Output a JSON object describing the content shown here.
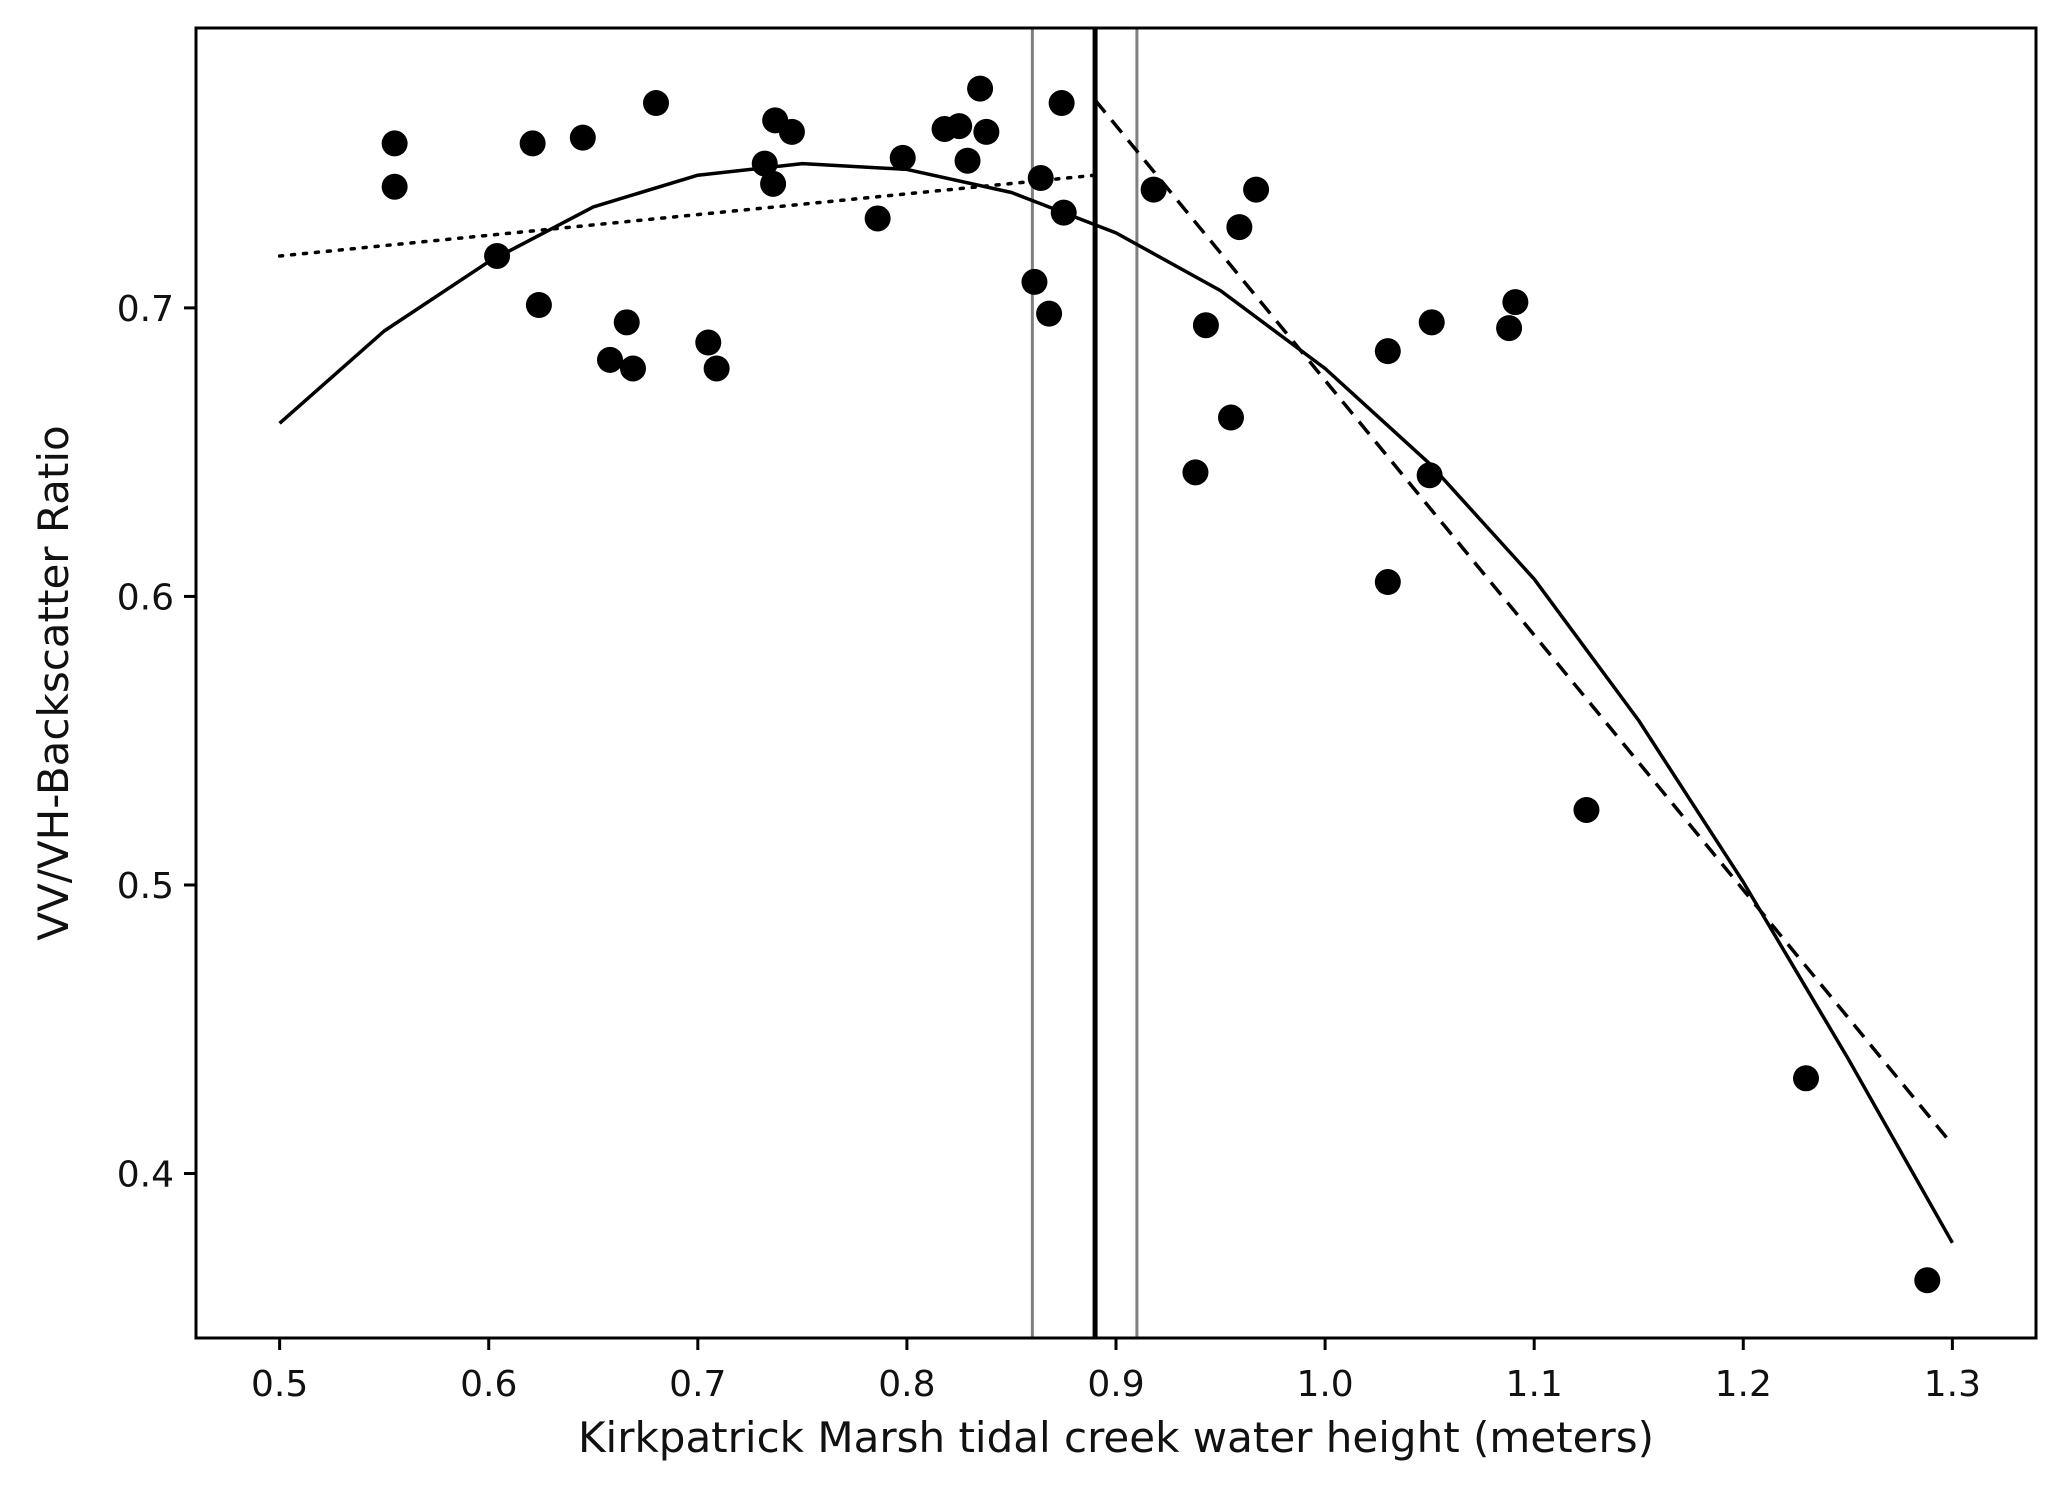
{
  "chart_data": {
    "type": "scatter",
    "title": "",
    "xlabel": "Kirkpatrick Marsh tidal creek water height (meters)",
    "ylabel": "VV/VH-Backscatter Ratio",
    "xlim": [
      0.46,
      1.34
    ],
    "ylim": [
      0.343,
      0.797
    ],
    "grid": false,
    "x_ticks": [
      0.5,
      0.6,
      0.7,
      0.8,
      0.9,
      1.0,
      1.1,
      1.2,
      1.3
    ],
    "x_tick_labels": [
      "0.5",
      "0.6",
      "0.7",
      "0.8",
      "0.9",
      "1.0",
      "1.1",
      "1.2",
      "1.3"
    ],
    "y_ticks": [
      0.4,
      0.5,
      0.6,
      0.7
    ],
    "y_tick_labels": [
      "0.4",
      "0.5",
      "0.6",
      "0.7"
    ],
    "points": [
      [
        0.555,
        0.757
      ],
      [
        0.555,
        0.742
      ],
      [
        0.604,
        0.718
      ],
      [
        0.621,
        0.757
      ],
      [
        0.624,
        0.701
      ],
      [
        0.645,
        0.759
      ],
      [
        0.658,
        0.682
      ],
      [
        0.666,
        0.695
      ],
      [
        0.669,
        0.679
      ],
      [
        0.68,
        0.771
      ],
      [
        0.705,
        0.688
      ],
      [
        0.709,
        0.679
      ],
      [
        0.732,
        0.75
      ],
      [
        0.736,
        0.743
      ],
      [
        0.737,
        0.765
      ],
      [
        0.745,
        0.761
      ],
      [
        0.786,
        0.731
      ],
      [
        0.798,
        0.752
      ],
      [
        0.818,
        0.762
      ],
      [
        0.825,
        0.763
      ],
      [
        0.829,
        0.751
      ],
      [
        0.835,
        0.776
      ],
      [
        0.838,
        0.761
      ],
      [
        0.861,
        0.709
      ],
      [
        0.864,
        0.745
      ],
      [
        0.868,
        0.698
      ],
      [
        0.874,
        0.771
      ],
      [
        0.875,
        0.733
      ],
      [
        0.918,
        0.741
      ],
      [
        0.938,
        0.643
      ],
      [
        0.943,
        0.694
      ],
      [
        0.955,
        0.662
      ],
      [
        0.959,
        0.728
      ],
      [
        0.967,
        0.741
      ],
      [
        1.03,
        0.685
      ],
      [
        1.03,
        0.605
      ],
      [
        1.05,
        0.642
      ],
      [
        1.051,
        0.695
      ],
      [
        1.088,
        0.693
      ],
      [
        1.091,
        0.702
      ],
      [
        1.125,
        0.526
      ],
      [
        1.23,
        0.433
      ],
      [
        1.288,
        0.363
      ]
    ],
    "curves": [
      {
        "name": "quadratic-fit",
        "style": "solid",
        "x": [
          0.5,
          0.55,
          0.6,
          0.65,
          0.7,
          0.75,
          0.8,
          0.85,
          0.9,
          0.95,
          1.0,
          1.05,
          1.1,
          1.15,
          1.2,
          1.25,
          1.3
        ],
        "y": [
          0.66,
          0.692,
          0.716,
          0.735,
          0.746,
          0.75,
          0.748,
          0.74,
          0.726,
          0.706,
          0.679,
          0.646,
          0.606,
          0.557,
          0.501,
          0.44,
          0.376
        ]
      },
      {
        "name": "linear-fit-below-breakpoint",
        "style": "dotted",
        "x": [
          0.5,
          0.89
        ],
        "y": [
          0.718,
          0.746
        ]
      },
      {
        "name": "linear-fit-above-breakpoint",
        "style": "dashed",
        "x": [
          0.89,
          1.3
        ],
        "y": [
          0.772,
          0.41
        ]
      }
    ],
    "vertical_lines": [
      {
        "name": "breakpoint",
        "x": 0.89,
        "color": "#000000"
      },
      {
        "name": "breakpoint-lower-bound",
        "x": 0.86,
        "color": "#808080"
      },
      {
        "name": "breakpoint-upper-bound",
        "x": 0.91,
        "color": "#808080"
      }
    ]
  }
}
